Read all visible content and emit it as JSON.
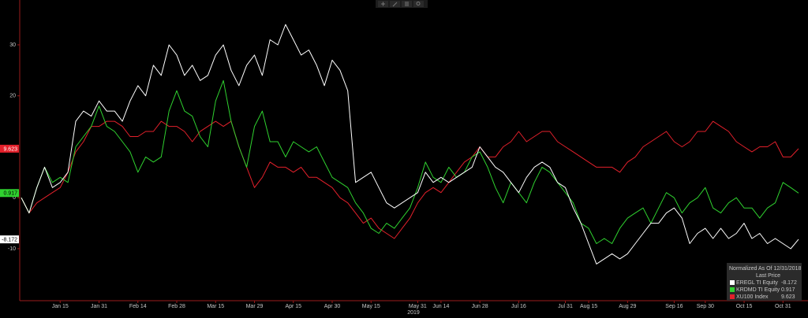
{
  "chart_data": {
    "type": "line",
    "legend_title": "Normalized As Of 12/31/2018",
    "legend_subtitle": "Last Price",
    "x_label": "2019",
    "legend_position": "lower right",
    "grid": false,
    "ylim": [
      -20.2,
      38.8
    ],
    "yticks": [
      -10,
      0,
      20,
      30
    ],
    "categories": [
      null,
      null,
      null,
      null,
      null,
      "Jan 15",
      null,
      null,
      null,
      null,
      "Jan 31",
      null,
      null,
      null,
      null,
      "Feb 14",
      null,
      null,
      null,
      null,
      "Feb 28",
      null,
      null,
      null,
      null,
      "Mar 15",
      null,
      null,
      null,
      null,
      "Mar 29",
      null,
      null,
      null,
      null,
      "Apr 15",
      null,
      null,
      null,
      null,
      "Apr 30",
      null,
      null,
      null,
      null,
      "May 15",
      null,
      null,
      null,
      null,
      null,
      "May 31",
      null,
      null,
      "Jun 14",
      null,
      null,
      null,
      null,
      "Jun 28",
      null,
      null,
      null,
      null,
      "Jul 16",
      null,
      null,
      null,
      null,
      null,
      "Jul 31",
      null,
      null,
      "Aug 15",
      null,
      null,
      null,
      null,
      "Aug 29",
      null,
      null,
      null,
      null,
      null,
      "Sep 16",
      null,
      null,
      null,
      "Sep 30",
      null,
      null,
      null,
      null,
      "Oct 15",
      null,
      null,
      null,
      null,
      "Oct 31",
      null,
      null
    ],
    "series": [
      {
        "name": "EREGL TI Equity",
        "color": "#ffffff",
        "label_text_color": "#000000",
        "values": [
          0,
          -3,
          2,
          6,
          2,
          3,
          5,
          15,
          17,
          16,
          19,
          17,
          17,
          15,
          19,
          22,
          20,
          26,
          24,
          30,
          28,
          24,
          26,
          23,
          24,
          28,
          30,
          25,
          22,
          26,
          28,
          24,
          31,
          30,
          34,
          31,
          28,
          29,
          26,
          22,
          27,
          25,
          21,
          3,
          4,
          5,
          2,
          -1,
          -2,
          -1,
          0,
          1,
          5,
          3,
          4,
          3,
          4,
          5,
          6,
          10,
          8,
          6,
          5,
          3,
          1,
          4,
          6,
          7,
          6,
          3,
          2,
          -2,
          -5,
          -9,
          -13,
          -12,
          -11,
          -12,
          -11,
          -9,
          -7,
          -5,
          -5,
          -3,
          -2,
          -4,
          -9,
          -7,
          -6,
          -8,
          -6,
          -8,
          -7,
          -5,
          -8,
          -7,
          -9,
          -8,
          -9,
          -10,
          -8.172
        ]
      },
      {
        "name": "KRDMD TI Equity",
        "color": "#2fd12f",
        "label_text_color": "#000000",
        "values": [
          0,
          -3,
          2,
          6,
          3,
          4,
          3,
          10,
          12,
          14,
          18,
          14,
          13,
          11,
          9,
          5,
          8,
          7,
          8,
          17,
          21,
          17,
          16,
          12,
          10,
          19,
          23,
          15,
          10,
          6,
          14,
          17,
          11,
          11,
          8,
          11,
          10,
          9,
          10,
          7,
          4,
          3,
          2,
          -1,
          -3,
          -6,
          -7,
          -5,
          -6,
          -4,
          -2,
          2,
          7,
          4,
          3,
          6,
          4,
          5,
          8,
          9,
          6,
          2,
          -1,
          3,
          1,
          -1,
          3,
          6,
          5,
          3,
          1,
          -1,
          -5,
          -6,
          -9,
          -8,
          -9,
          -6,
          -4,
          -3,
          -2,
          -5,
          -2,
          1,
          0,
          -3,
          -1,
          0,
          2,
          -2,
          -3,
          -1,
          0,
          -2,
          -2,
          -4,
          -2,
          -1,
          3,
          2,
          0.917
        ]
      },
      {
        "name": "XU100 Index",
        "color": "#e3202b",
        "label_text_color": "#ffffff",
        "values": [
          0,
          -3,
          -1,
          0,
          1,
          2,
          5,
          9,
          11,
          14,
          14,
          15,
          15,
          14,
          12,
          12,
          13,
          13,
          15,
          14,
          14,
          13,
          11,
          13,
          14,
          15,
          14,
          15,
          10,
          6,
          2,
          4,
          7,
          6,
          6,
          5,
          6,
          4,
          4,
          3,
          2,
          0,
          -1,
          -3,
          -5,
          -4,
          -6,
          -7,
          -8,
          -6,
          -4,
          -1,
          1,
          2,
          1,
          3,
          5,
          7,
          8,
          10,
          8,
          8,
          10,
          11,
          13,
          11,
          12,
          13,
          13,
          11,
          10,
          9,
          8,
          7,
          6,
          6,
          6,
          5,
          7,
          8,
          10,
          11,
          12,
          13,
          11,
          10,
          11,
          13,
          13,
          15,
          14,
          13,
          11,
          10,
          9,
          10,
          10,
          11,
          8,
          8,
          9.623
        ]
      }
    ],
    "axis_color": "#9b1b1b"
  }
}
